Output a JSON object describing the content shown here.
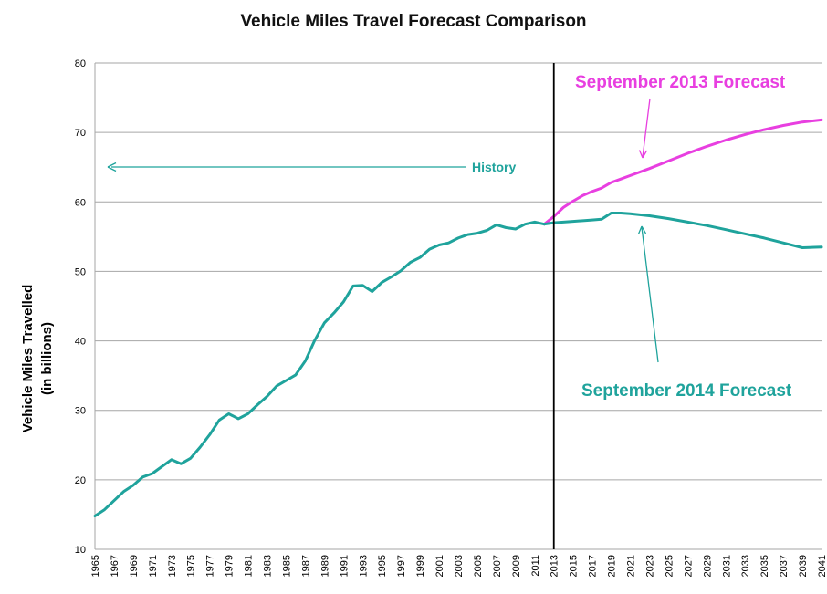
{
  "chart_data": {
    "type": "line",
    "title": "Vehicle Miles Travel Forecast Comparison",
    "xlabel": "",
    "ylabel": "Vehicle Miles Travelled",
    "ylabel_sub": "(in billions)",
    "xlim": [
      1965,
      2041
    ],
    "ylim": [
      10,
      80
    ],
    "y_ticks": [
      "10",
      "20",
      "30",
      "40",
      "50",
      "60",
      "70",
      "80"
    ],
    "x_ticks": [
      "1965",
      "1967",
      "1969",
      "1971",
      "1973",
      "1975",
      "1977",
      "1979",
      "1981",
      "1983",
      "1985",
      "1987",
      "1989",
      "1991",
      "1993",
      "1995",
      "1997",
      "1999",
      "2001",
      "2003",
      "2005",
      "2007",
      "2009",
      "2011",
      "2013",
      "2015",
      "2017",
      "2019",
      "2021",
      "2023",
      "2025",
      "2027",
      "2029",
      "2031",
      "2033",
      "2035",
      "2037",
      "2039",
      "2041"
    ],
    "grid": "horizontal",
    "divider_year": 2013,
    "colors": {
      "history": "#1fa39c",
      "forecast_2014": "#1fa39c",
      "forecast_2013": "#e83fe0",
      "divider": "#000000",
      "grid": "#a6a6a6"
    },
    "series": [
      {
        "key": "history",
        "x": [
          1965,
          1966,
          1967,
          1968,
          1969,
          1970,
          1971,
          1972,
          1973,
          1974,
          1975,
          1976,
          1977,
          1978,
          1979,
          1980,
          1981,
          1982,
          1983,
          1984,
          1985,
          1986,
          1987,
          1988,
          1989,
          1990,
          1991,
          1992,
          1993,
          1994,
          1995,
          1996,
          1997,
          1998,
          1999,
          2000,
          2001,
          2002,
          2003,
          2004,
          2005,
          2006,
          2007,
          2008,
          2009,
          2010,
          2011,
          2012
        ],
        "values": [
          14.8,
          15.7,
          17.0,
          18.3,
          19.2,
          20.4,
          20.9,
          21.9,
          22.9,
          22.3,
          23.1,
          24.7,
          26.5,
          28.6,
          29.5,
          28.8,
          29.5,
          30.8,
          32.0,
          33.5,
          34.3,
          35.1,
          37.1,
          40.1,
          42.6,
          44.0,
          45.6,
          47.9,
          48.0,
          47.1,
          48.4,
          49.2,
          50.1,
          51.3,
          52.0,
          53.2,
          53.8,
          54.1,
          54.8,
          55.3,
          55.5,
          55.9,
          56.7,
          56.3,
          56.1,
          56.8,
          57.1,
          56.8
        ]
      },
      {
        "key": "forecast_2014",
        "x": [
          2012,
          2013,
          2015,
          2017,
          2018,
          2019,
          2020,
          2021,
          2023,
          2025,
          2027,
          2029,
          2031,
          2033,
          2035,
          2037,
          2039,
          2041
        ],
        "values": [
          56.8,
          57.0,
          57.2,
          57.4,
          57.5,
          58.4,
          58.4,
          58.3,
          58.0,
          57.6,
          57.1,
          56.6,
          56.0,
          55.4,
          54.8,
          54.1,
          53.4,
          53.5
        ]
      },
      {
        "key": "forecast_2013",
        "x": [
          2012,
          2013,
          2014,
          2015,
          2016,
          2017,
          2018,
          2019,
          2020,
          2021,
          2023,
          2025,
          2027,
          2029,
          2031,
          2033,
          2035,
          2037,
          2039,
          2041
        ],
        "values": [
          56.8,
          57.9,
          59.2,
          60.1,
          60.9,
          61.5,
          62.0,
          62.8,
          63.3,
          63.8,
          64.8,
          65.9,
          67.0,
          68.0,
          68.9,
          69.7,
          70.4,
          71.0,
          71.5,
          71.8
        ]
      }
    ],
    "annotations": {
      "history": "History",
      "forecast_2013": "September 2013 Forecast",
      "forecast_2014": "September 2014 Forecast"
    }
  }
}
